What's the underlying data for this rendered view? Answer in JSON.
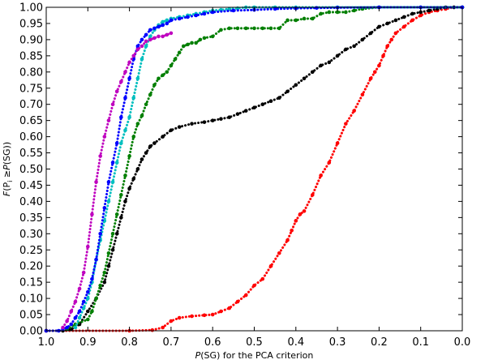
{
  "chart_data": {
    "type": "scatter",
    "xlabel_parts": [
      "P",
      "(SG) for the PCA criterion"
    ],
    "ylabel_parts": [
      "F",
      "(P",
      "i",
      " ≥",
      "P",
      "(SG))"
    ],
    "xlim": [
      1.0,
      0.0
    ],
    "ylim": [
      0.0,
      1.0
    ],
    "x_ticks": [
      "1.0",
      "0.9",
      "0.8",
      "0.7",
      "0.6",
      "0.5",
      "0.4",
      "0.3",
      "0.2",
      "0.1",
      "0.0"
    ],
    "y_ticks": [
      "0.00",
      "0.05",
      "0.10",
      "0.15",
      "0.20",
      "0.25",
      "0.30",
      "0.35",
      "0.40",
      "0.45",
      "0.50",
      "0.55",
      "0.60",
      "0.65",
      "0.70",
      "0.75",
      "0.80",
      "0.85",
      "0.90",
      "0.95",
      "1.00"
    ],
    "grid": false,
    "series": [
      {
        "color": "#ff0000",
        "x": [
          1.0,
          0.8,
          0.745,
          0.72,
          0.7,
          0.68,
          0.65,
          0.62,
          0.6,
          0.58,
          0.56,
          0.54,
          0.52,
          0.5,
          0.48,
          0.46,
          0.44,
          0.42,
          0.41,
          0.4,
          0.39,
          0.38,
          0.36,
          0.34,
          0.32,
          0.3,
          0.28,
          0.26,
          0.24,
          0.22,
          0.21,
          0.2,
          0.19,
          0.18,
          0.17,
          0.16,
          0.14,
          0.12,
          0.1,
          0.08,
          0.06,
          0.04,
          0.02,
          0.0
        ],
        "y": [
          0.0,
          0.0,
          0.002,
          0.01,
          0.03,
          0.04,
          0.045,
          0.048,
          0.05,
          0.06,
          0.07,
          0.09,
          0.11,
          0.14,
          0.16,
          0.2,
          0.24,
          0.28,
          0.31,
          0.34,
          0.36,
          0.37,
          0.42,
          0.48,
          0.52,
          0.58,
          0.64,
          0.68,
          0.73,
          0.78,
          0.8,
          0.82,
          0.85,
          0.88,
          0.9,
          0.92,
          0.94,
          0.96,
          0.975,
          0.985,
          0.99,
          0.995,
          1.0,
          1.0
        ]
      },
      {
        "color": "#000000",
        "x": [
          1.0,
          0.96,
          0.94,
          0.92,
          0.9,
          0.88,
          0.86,
          0.85,
          0.84,
          0.83,
          0.82,
          0.81,
          0.8,
          0.79,
          0.78,
          0.77,
          0.76,
          0.75,
          0.74,
          0.72,
          0.7,
          0.68,
          0.65,
          0.62,
          0.6,
          0.58,
          0.56,
          0.54,
          0.52,
          0.5,
          0.48,
          0.46,
          0.44,
          0.42,
          0.4,
          0.38,
          0.36,
          0.34,
          0.32,
          0.3,
          0.28,
          0.26,
          0.24,
          0.22,
          0.2,
          0.18,
          0.16,
          0.14,
          0.12,
          0.1,
          0.08,
          0.06,
          0.04,
          0.02,
          0.0
        ],
        "y": [
          0.0,
          0.0,
          0.005,
          0.02,
          0.06,
          0.1,
          0.15,
          0.2,
          0.25,
          0.3,
          0.35,
          0.4,
          0.44,
          0.47,
          0.5,
          0.53,
          0.55,
          0.57,
          0.58,
          0.6,
          0.62,
          0.63,
          0.64,
          0.645,
          0.65,
          0.655,
          0.66,
          0.67,
          0.68,
          0.69,
          0.7,
          0.71,
          0.72,
          0.74,
          0.76,
          0.78,
          0.8,
          0.82,
          0.83,
          0.85,
          0.87,
          0.88,
          0.9,
          0.92,
          0.94,
          0.95,
          0.96,
          0.97,
          0.98,
          0.985,
          0.99,
          0.995,
          1.0,
          1.0,
          1.0
        ]
      },
      {
        "color": "#007f00",
        "x": [
          0.95,
          0.93,
          0.9,
          0.89,
          0.88,
          0.87,
          0.86,
          0.85,
          0.84,
          0.83,
          0.82,
          0.81,
          0.8,
          0.79,
          0.78,
          0.77,
          0.76,
          0.75,
          0.74,
          0.73,
          0.72,
          0.71,
          0.7,
          0.69,
          0.68,
          0.67,
          0.66,
          0.65,
          0.64,
          0.63,
          0.62,
          0.6,
          0.58,
          0.56,
          0.54,
          0.52,
          0.5,
          0.48,
          0.46,
          0.44,
          0.42,
          0.4,
          0.38,
          0.36,
          0.34,
          0.32,
          0.3,
          0.28,
          0.26,
          0.24,
          0.2,
          0.1,
          0.0
        ],
        "y": [
          0.005,
          0.02,
          0.035,
          0.06,
          0.1,
          0.14,
          0.18,
          0.24,
          0.3,
          0.36,
          0.42,
          0.48,
          0.54,
          0.6,
          0.64,
          0.665,
          0.7,
          0.73,
          0.76,
          0.78,
          0.79,
          0.8,
          0.82,
          0.84,
          0.86,
          0.88,
          0.885,
          0.89,
          0.89,
          0.9,
          0.905,
          0.91,
          0.93,
          0.935,
          0.935,
          0.935,
          0.935,
          0.935,
          0.935,
          0.935,
          0.96,
          0.96,
          0.965,
          0.965,
          0.98,
          0.985,
          0.985,
          0.985,
          0.99,
          0.995,
          1.0,
          1.0,
          1.0
        ]
      },
      {
        "color": "#00bfbf",
        "x": [
          0.93,
          0.92,
          0.91,
          0.9,
          0.89,
          0.88,
          0.87,
          0.86,
          0.85,
          0.84,
          0.83,
          0.82,
          0.81,
          0.8,
          0.79,
          0.78,
          0.77,
          0.76,
          0.75,
          0.74,
          0.73,
          0.72,
          0.71,
          0.7,
          0.68,
          0.66,
          0.64,
          0.62,
          0.6,
          0.58,
          0.56,
          0.54,
          0.52,
          0.5,
          0.45,
          0.4,
          0.3,
          0.0
        ],
        "y": [
          0.01,
          0.04,
          0.07,
          0.1,
          0.15,
          0.22,
          0.28,
          0.34,
          0.4,
          0.46,
          0.52,
          0.58,
          0.62,
          0.66,
          0.72,
          0.78,
          0.84,
          0.88,
          0.91,
          0.93,
          0.945,
          0.955,
          0.96,
          0.965,
          0.97,
          0.975,
          0.98,
          0.985,
          0.99,
          0.992,
          0.995,
          0.997,
          1.0,
          1.0,
          1.0,
          1.0,
          1.0,
          1.0
        ]
      },
      {
        "color": "#0000ff",
        "x": [
          1.0,
          0.97,
          0.96,
          0.95,
          0.94,
          0.93,
          0.92,
          0.91,
          0.9,
          0.89,
          0.88,
          0.87,
          0.86,
          0.85,
          0.84,
          0.83,
          0.82,
          0.81,
          0.8,
          0.79,
          0.78,
          0.77,
          0.76,
          0.75,
          0.74,
          0.73,
          0.72,
          0.71,
          0.7,
          0.68,
          0.66,
          0.64,
          0.62,
          0.6,
          0.55,
          0.5,
          0.45,
          0.4,
          0.35,
          0.3,
          0.2,
          0.1,
          0.0
        ],
        "y": [
          0.0,
          0.0,
          0.005,
          0.01,
          0.02,
          0.04,
          0.06,
          0.09,
          0.12,
          0.16,
          0.22,
          0.3,
          0.38,
          0.46,
          0.52,
          0.58,
          0.66,
          0.72,
          0.78,
          0.84,
          0.88,
          0.9,
          0.915,
          0.93,
          0.935,
          0.94,
          0.945,
          0.95,
          0.96,
          0.965,
          0.97,
          0.975,
          0.98,
          0.985,
          0.99,
          0.992,
          0.995,
          0.997,
          0.998,
          0.999,
          1.0,
          1.0,
          1.0
        ]
      },
      {
        "color": "#bf00bf",
        "x": [
          0.96,
          0.95,
          0.94,
          0.93,
          0.92,
          0.91,
          0.9,
          0.89,
          0.88,
          0.87,
          0.86,
          0.85,
          0.84,
          0.83,
          0.82,
          0.81,
          0.8,
          0.79,
          0.78,
          0.77,
          0.76,
          0.75,
          0.74,
          0.73,
          0.72,
          0.71,
          0.7
        ],
        "y": [
          0.01,
          0.03,
          0.06,
          0.09,
          0.13,
          0.18,
          0.26,
          0.36,
          0.46,
          0.54,
          0.6,
          0.65,
          0.7,
          0.74,
          0.77,
          0.8,
          0.83,
          0.85,
          0.87,
          0.88,
          0.895,
          0.9,
          0.905,
          0.91,
          0.91,
          0.915,
          0.92
        ]
      }
    ]
  }
}
